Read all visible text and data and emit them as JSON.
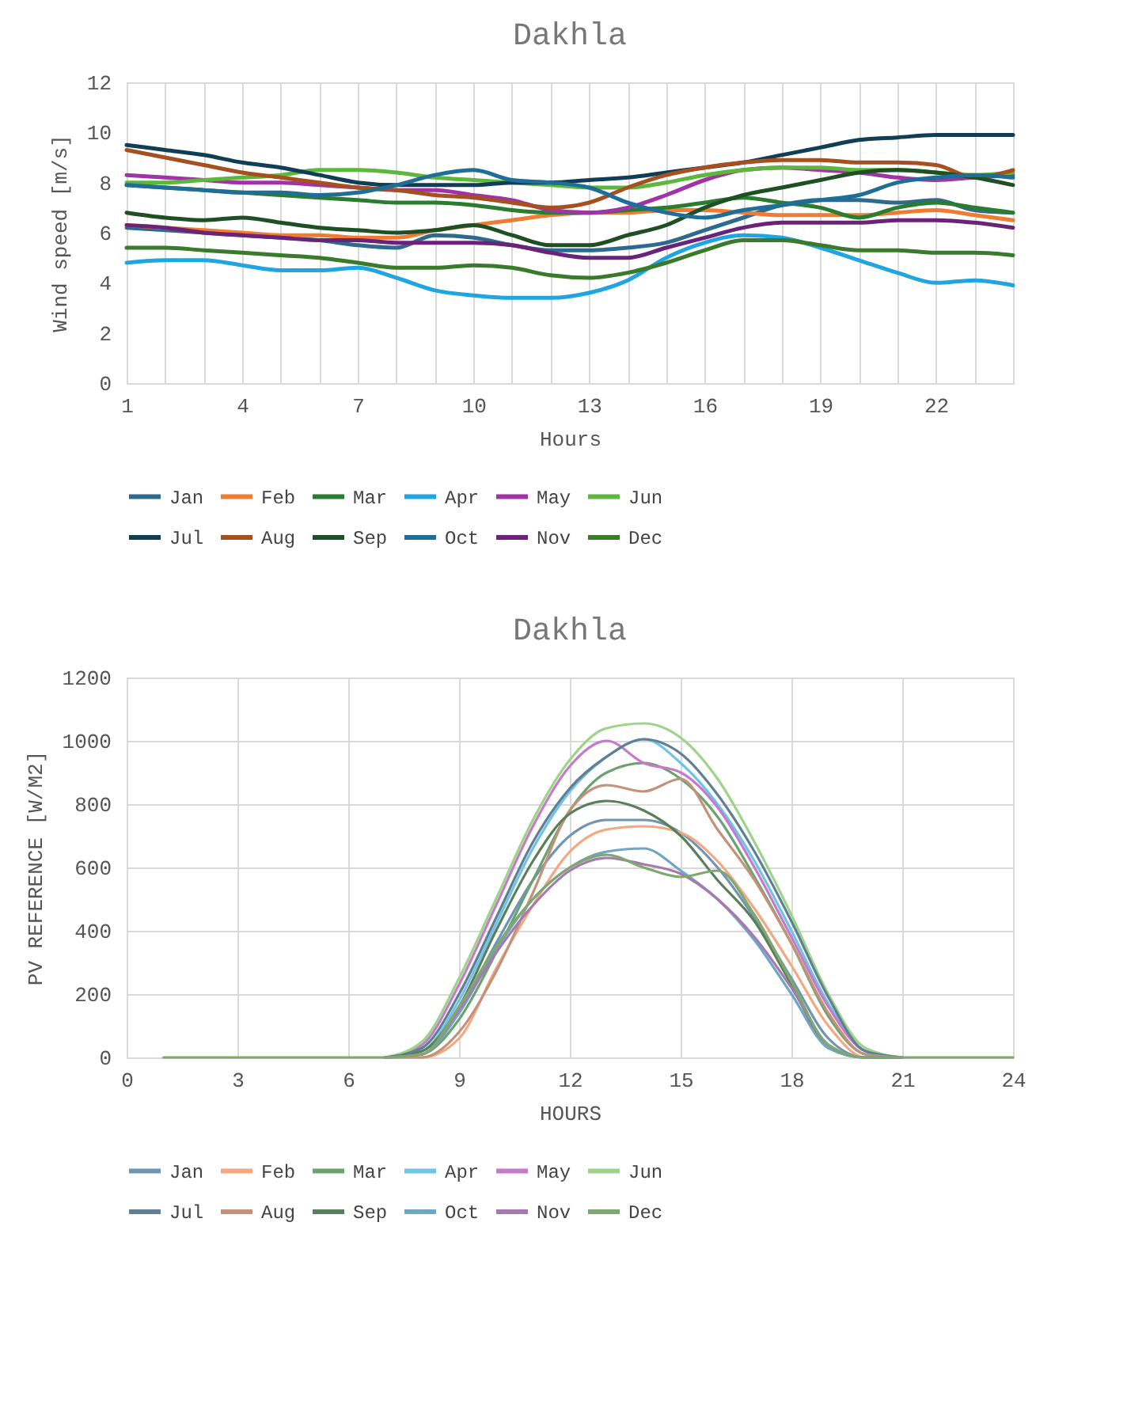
{
  "chart_data": [
    {
      "type": "line",
      "title": "Dakhla",
      "xlabel": "Hours",
      "ylabel": "Wind speed [m/s]",
      "x": [
        1,
        2,
        3,
        4,
        5,
        6,
        7,
        8,
        9,
        10,
        11,
        12,
        13,
        14,
        15,
        16,
        17,
        18,
        19,
        20,
        21,
        22,
        23,
        24
      ],
      "xlim": [
        1,
        24
      ],
      "xticks": [
        1,
        {
          "value": 2,
          "label": null
        },
        {
          "value": 3,
          "label": null
        },
        4,
        {
          "value": 5,
          "label": null
        },
        {
          "value": 6,
          "label": null
        },
        7,
        {
          "value": 8,
          "label": null
        },
        {
          "value": 9,
          "label": null
        },
        10,
        {
          "value": 11,
          "label": null
        },
        {
          "value": 12,
          "label": null
        },
        13,
        {
          "value": 14,
          "label": null
        },
        {
          "value": 15,
          "label": null
        },
        16,
        {
          "value": 17,
          "label": null
        },
        {
          "value": 18,
          "label": null
        },
        19,
        {
          "value": 20,
          "label": null
        },
        {
          "value": 21,
          "label": null
        },
        22,
        {
          "value": 23,
          "label": null
        },
        {
          "value": 24,
          "label": null
        }
      ],
      "ylim": [
        0,
        12
      ],
      "yticks": [
        0,
        2,
        4,
        6,
        8,
        10,
        12
      ],
      "grid": "x",
      "legend": "bottom",
      "series": [
        {
          "name": "Jan",
          "color": "#2e6a8e",
          "values": [
            6.2,
            6.1,
            6.0,
            5.9,
            5.8,
            5.7,
            5.5,
            5.4,
            5.9,
            5.8,
            5.5,
            5.3,
            5.3,
            5.4,
            5.6,
            6.1,
            6.6,
            7.1,
            7.3,
            7.3,
            7.2,
            7.3,
            6.9,
            6.8
          ]
        },
        {
          "name": "Feb",
          "color": "#f07c32",
          "values": [
            6.3,
            6.2,
            6.1,
            6.0,
            5.9,
            5.9,
            5.8,
            5.8,
            6.1,
            6.3,
            6.5,
            6.7,
            6.8,
            6.8,
            6.9,
            6.9,
            6.8,
            6.7,
            6.7,
            6.7,
            6.8,
            6.9,
            6.7,
            6.5
          ]
        },
        {
          "name": "Mar",
          "color": "#2a7d2e",
          "values": [
            7.9,
            7.8,
            7.7,
            7.6,
            7.5,
            7.4,
            7.3,
            7.2,
            7.2,
            7.1,
            6.9,
            6.8,
            6.8,
            6.9,
            7.0,
            7.2,
            7.4,
            7.2,
            7.0,
            6.6,
            7.0,
            7.2,
            7.0,
            6.8
          ]
        },
        {
          "name": "Apr",
          "color": "#1fa6e0",
          "values": [
            4.8,
            4.9,
            4.9,
            4.7,
            4.5,
            4.5,
            4.6,
            4.2,
            3.7,
            3.5,
            3.4,
            3.4,
            3.6,
            4.1,
            5.0,
            5.6,
            5.9,
            5.8,
            5.4,
            4.9,
            4.4,
            4.0,
            4.1,
            3.9
          ]
        },
        {
          "name": "May",
          "color": "#a033a5",
          "values": [
            8.3,
            8.2,
            8.1,
            8.0,
            8.0,
            7.9,
            7.8,
            7.7,
            7.7,
            7.5,
            7.3,
            6.9,
            6.8,
            7.0,
            7.5,
            8.1,
            8.5,
            8.6,
            8.5,
            8.4,
            8.2,
            8.1,
            8.2,
            8.3
          ]
        },
        {
          "name": "Jun",
          "color": "#5cb83c",
          "values": [
            8.0,
            8.0,
            8.1,
            8.2,
            8.3,
            8.5,
            8.5,
            8.4,
            8.2,
            8.1,
            8.0,
            7.9,
            7.8,
            7.8,
            8.0,
            8.3,
            8.5,
            8.6,
            8.6,
            8.5,
            8.5,
            8.4,
            8.3,
            8.4
          ]
        },
        {
          "name": "Jul",
          "color": "#123e55",
          "values": [
            9.5,
            9.3,
            9.1,
            8.8,
            8.6,
            8.3,
            8.0,
            7.9,
            7.9,
            7.9,
            8.0,
            8.0,
            8.1,
            8.2,
            8.4,
            8.6,
            8.8,
            9.1,
            9.4,
            9.7,
            9.8,
            9.9,
            9.9,
            9.9
          ]
        },
        {
          "name": "Aug",
          "color": "#a64f1f",
          "values": [
            9.3,
            9.0,
            8.7,
            8.4,
            8.2,
            8.0,
            7.8,
            7.7,
            7.5,
            7.4,
            7.2,
            7.0,
            7.2,
            7.8,
            8.3,
            8.6,
            8.8,
            8.9,
            8.9,
            8.8,
            8.8,
            8.7,
            8.2,
            8.5
          ]
        },
        {
          "name": "Sep",
          "color": "#1f4f24",
          "values": [
            6.8,
            6.6,
            6.5,
            6.6,
            6.4,
            6.2,
            6.1,
            6.0,
            6.1,
            6.3,
            5.9,
            5.5,
            5.5,
            5.9,
            6.3,
            7.0,
            7.5,
            7.8,
            8.1,
            8.4,
            8.5,
            8.4,
            8.2,
            7.9
          ]
        },
        {
          "name": "Oct",
          "color": "#1e6e98",
          "values": [
            7.9,
            7.8,
            7.7,
            7.6,
            7.6,
            7.5,
            7.6,
            7.9,
            8.3,
            8.5,
            8.1,
            8.0,
            7.8,
            7.2,
            6.8,
            6.6,
            6.9,
            7.1,
            7.3,
            7.5,
            8.0,
            8.2,
            8.3,
            8.2
          ]
        },
        {
          "name": "Nov",
          "color": "#6a2379",
          "values": [
            6.3,
            6.2,
            6.0,
            5.9,
            5.8,
            5.7,
            5.7,
            5.6,
            5.6,
            5.6,
            5.5,
            5.2,
            5.0,
            5.0,
            5.4,
            5.8,
            6.2,
            6.4,
            6.4,
            6.4,
            6.5,
            6.5,
            6.4,
            6.2
          ]
        },
        {
          "name": "Dec",
          "color": "#3a7a2b",
          "values": [
            5.4,
            5.4,
            5.3,
            5.2,
            5.1,
            5.0,
            4.8,
            4.6,
            4.6,
            4.7,
            4.6,
            4.3,
            4.2,
            4.4,
            4.8,
            5.3,
            5.7,
            5.7,
            5.5,
            5.3,
            5.3,
            5.2,
            5.2,
            5.1
          ]
        }
      ]
    },
    {
      "type": "line",
      "title": "Dakhla",
      "xlabel": "HOURS",
      "ylabel": "PV REFERENCE [W/M2]",
      "x": [
        1,
        2,
        3,
        4,
        5,
        6,
        7,
        8,
        9,
        10,
        11,
        12,
        13,
        14,
        15,
        16,
        17,
        18,
        19,
        20,
        21,
        22,
        23,
        24
      ],
      "xlim": [
        0,
        24
      ],
      "xticks": [
        0,
        3,
        6,
        9,
        12,
        15,
        18,
        21,
        24
      ],
      "ylim": [
        0,
        1200
      ],
      "yticks": [
        0,
        200,
        400,
        600,
        800,
        1000,
        1200
      ],
      "grid": true,
      "legend": "bottom",
      "series": [
        {
          "name": "Jan",
          "color": "#6f95b4",
          "values": [
            null,
            null,
            null,
            null,
            null,
            null,
            0,
            10,
            150,
            360,
            560,
            700,
            750,
            750,
            710,
            600,
            440,
            250,
            60,
            0,
            0,
            null,
            null,
            null
          ]
        },
        {
          "name": "Feb",
          "color": "#f4a882",
          "values": [
            null,
            null,
            null,
            null,
            null,
            null,
            0,
            0,
            60,
            280,
            480,
            650,
            720,
            730,
            710,
            620,
            470,
            290,
            100,
            0,
            0,
            null,
            null,
            null
          ]
        },
        {
          "name": "Mar",
          "color": "#6aa36f",
          "values": [
            null,
            null,
            null,
            null,
            null,
            null,
            0,
            10,
            120,
            330,
            560,
            780,
            900,
            930,
            880,
            760,
            570,
            360,
            130,
            10,
            0,
            null,
            null,
            null
          ]
        },
        {
          "name": "Apr",
          "color": "#6ec3e6",
          "values": [
            null,
            null,
            null,
            null,
            null,
            null,
            0,
            20,
            180,
            420,
            660,
            840,
            950,
            1005,
            930,
            800,
            620,
            400,
            170,
            20,
            0,
            null,
            null,
            null
          ]
        },
        {
          "name": "May",
          "color": "#c57bc9",
          "values": [
            null,
            null,
            null,
            null,
            null,
            null,
            0,
            40,
            230,
            480,
            730,
            920,
            1000,
            930,
            900,
            790,
            600,
            380,
            160,
            20,
            0,
            null,
            null,
            null
          ]
        },
        {
          "name": "Jun",
          "color": "#9ed38a",
          "values": [
            null,
            null,
            null,
            null,
            null,
            null,
            0,
            50,
            250,
            500,
            750,
            940,
            1040,
            1055,
            1010,
            880,
            680,
            450,
            200,
            30,
            0,
            null,
            null,
            null
          ]
        },
        {
          "name": "Jul",
          "color": "#5e7f94",
          "values": [
            null,
            null,
            null,
            null,
            null,
            null,
            0,
            30,
            200,
            440,
            680,
            850,
            950,
            1005,
            960,
            830,
            650,
            430,
            190,
            20,
            0,
            null,
            null,
            null
          ]
        },
        {
          "name": "Aug",
          "color": "#c2927a",
          "values": [
            null,
            null,
            null,
            null,
            null,
            null,
            0,
            0,
            80,
            270,
            520,
            780,
            860,
            840,
            880,
            720,
            560,
            360,
            140,
            10,
            0,
            null,
            null,
            null
          ]
        },
        {
          "name": "Sep",
          "color": "#5b7f5a",
          "values": [
            null,
            null,
            null,
            null,
            null,
            null,
            0,
            20,
            160,
            400,
            620,
            770,
            810,
            780,
            700,
            560,
            430,
            230,
            30,
            0,
            0,
            null,
            null,
            null
          ]
        },
        {
          "name": "Oct",
          "color": "#6ea6c4",
          "values": [
            null,
            null,
            null,
            null,
            null,
            null,
            0,
            10,
            140,
            340,
            500,
            600,
            650,
            660,
            590,
            500,
            370,
            200,
            30,
            0,
            0,
            null,
            null,
            null
          ]
        },
        {
          "name": "Nov",
          "color": "#a67ab0",
          "values": [
            null,
            null,
            null,
            null,
            null,
            null,
            0,
            10,
            150,
            330,
            480,
            590,
            630,
            610,
            580,
            500,
            380,
            220,
            40,
            0,
            0,
            null,
            null,
            null
          ]
        },
        {
          "name": "Dec",
          "color": "#7fa86f",
          "values": [
            0,
            0,
            0,
            0,
            0,
            0,
            0,
            10,
            160,
            350,
            500,
            600,
            640,
            600,
            570,
            590,
            450,
            240,
            40,
            0,
            0,
            0,
            0,
            0
          ]
        }
      ]
    }
  ]
}
